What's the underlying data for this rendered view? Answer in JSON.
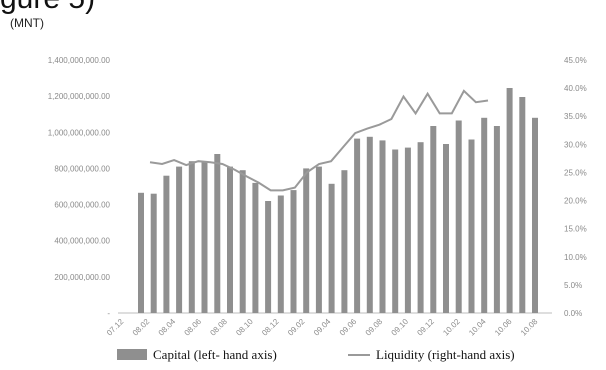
{
  "heading": "gure 5)",
  "unit_label": "(MNT)",
  "chart_data": {
    "type": "bar+line",
    "left_axis": {
      "range": [
        0,
        1400000000
      ],
      "ticks": [
        "-",
        "200,000,000.00",
        "400,000,000.00",
        "600,000,000.00",
        "800,000,000.00",
        "1,000,000,000.00",
        "1,200,000,000.00",
        "1,400,000,000.00"
      ]
    },
    "right_axis": {
      "range": [
        0,
        45
      ],
      "ticks": [
        "0.0%",
        "5.0%",
        "10.0%",
        "15.0%",
        "20.0%",
        "25.0%",
        "30.0%",
        "35.0%",
        "40.0%",
        "45.0%"
      ]
    },
    "x_tick_labels": [
      "07.12",
      "08.02",
      "08.04",
      "08.06",
      "08.08",
      "08.10",
      "08.12",
      "09.02",
      "09.04",
      "09.06",
      "09.08",
      "09.10",
      "09.12",
      "10.02",
      "10.04",
      "10.06",
      "10.08"
    ],
    "series": [
      {
        "name": "Capital (left- hand axis)",
        "type": "bar",
        "axis": "left",
        "color": "#8f8f8f",
        "values": [
          665000000,
          660000000,
          760000000,
          810000000,
          840000000,
          840000000,
          880000000,
          810000000,
          790000000,
          720000000,
          620000000,
          650000000,
          680000000,
          800000000,
          810000000,
          715000000,
          790000000,
          965000000,
          975000000,
          955000000,
          905000000,
          915000000,
          945000000,
          1035000000,
          935000000,
          1065000000,
          960000000,
          1080000000,
          1035000000,
          1245000000,
          1195000000,
          1080000000
        ]
      },
      {
        "name": "Liquidity (right-hand axis)",
        "type": "line",
        "axis": "right",
        "color": "#9a9a9a",
        "values": [
          26.8,
          26.5,
          27.2,
          26.3,
          27.0,
          26.8,
          26.5,
          25.5,
          24.3,
          23.2,
          21.8,
          21.8,
          22.3,
          25.0,
          26.5,
          27.0,
          29.5,
          32.0,
          32.8,
          33.5,
          34.5,
          38.5,
          35.5,
          39.0,
          35.5,
          35.5,
          39.5,
          37.5,
          37.8
        ]
      }
    ],
    "legend_position": "bottom",
    "grid": false
  }
}
